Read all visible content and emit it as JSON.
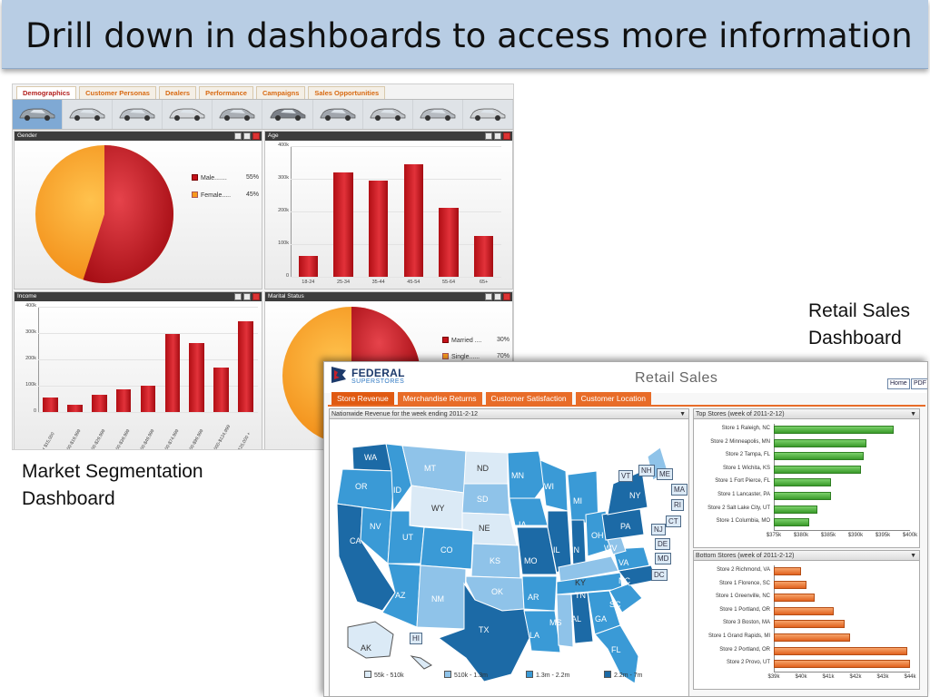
{
  "slide": {
    "title": "Drill down in dashboards to access more information",
    "caption_retail_line1": "Retail Sales",
    "caption_retail_line2": "Dashboard",
    "caption_market_line1": "Market Segmentation",
    "caption_market_line2": "Dashboard"
  },
  "market": {
    "tabs": [
      "Demographics",
      "Customer Personas",
      "Dealers",
      "Performance",
      "Campaigns",
      "Sales Opportunities"
    ],
    "active_tab": "Demographics",
    "car_icon": "car-icon",
    "car_count": 10,
    "gender": {
      "title": "Gender",
      "legend": [
        {
          "label": "Male.......",
          "pct": "55%",
          "color": "#c4111a"
        },
        {
          "label": "Female.....",
          "pct": "45%",
          "color": "#f79a1e"
        }
      ]
    },
    "age": {
      "title": "Age",
      "yticks": [
        "400k",
        "300k",
        "200k",
        "100k",
        "0"
      ],
      "categories": [
        "18-24",
        "25-34",
        "35-44",
        "45-54",
        "55-64",
        "65+"
      ],
      "values": [
        65000,
        320000,
        295000,
        345000,
        210000,
        125000
      ],
      "ymax": 400000
    },
    "income": {
      "title": "Income",
      "yticks": [
        "400k",
        "300k",
        "200k",
        "100k",
        "0"
      ],
      "categories": [
        "Under $15,000",
        "$15,000-$19,999",
        "$20,000-$29,999",
        "$30,000-$39,999",
        "$40,000-$49,999",
        "$50,000-$74,999",
        "$75,000-$99,999",
        "$100,000-$124,999",
        "$125,000 +"
      ],
      "values": [
        55000,
        28000,
        65000,
        85000,
        100000,
        298000,
        262000,
        170000,
        345000
      ],
      "ymax": 400000
    },
    "marital": {
      "title": "Marital Status",
      "legend": [
        {
          "label": "Married ....",
          "pct": "30%",
          "color": "#c4111a"
        },
        {
          "label": "Single......",
          "pct": "70%",
          "color": "#f79a1e"
        }
      ]
    }
  },
  "retail": {
    "logo_line1": "FEDERAL",
    "logo_line2": "SUPERSTORES",
    "title": "Retail Sales",
    "home_btn": "Home",
    "pdf_btn": "PDF",
    "tabs": [
      "Store Revenue",
      "Merchandise Returns",
      "Customer Satisfaction",
      "Customer Location"
    ],
    "active_tab": "Store Revenue",
    "map_title": "Nationwide Revenue for the week ending 2011-2-12",
    "map_legend": [
      {
        "label": "55k - 510k",
        "color": "#dbeaf6"
      },
      {
        "label": "510k - 1.3m",
        "color": "#8fc3e9"
      },
      {
        "label": "1.3m - 2.2m",
        "color": "#3a9ad6"
      },
      {
        "label": "2.2m - 7m",
        "color": "#1c6aa6"
      }
    ],
    "boxed_states": [
      "VT",
      "NH",
      "ME",
      "MA",
      "RI",
      "CT",
      "NJ",
      "DE",
      "MD",
      "DC",
      "HI"
    ],
    "top_stores": {
      "title": "Top Stores (week of 2011-2-12)",
      "stores": [
        "Store 1 Raleigh, NC",
        "Store 2 Minneapolis, MN",
        "Store 2 Tampa, FL",
        "Store 1 Wichita, KS",
        "Store 1 Fort Pierce, FL",
        "Store 1 Lancaster, PA",
        "Store 2 Salt Lake City, UT",
        "Store 1 Columbia, MO"
      ],
      "values": [
        397000,
        392000,
        391500,
        391000,
        385500,
        385500,
        383000,
        381500
      ],
      "xticks": [
        "$375k",
        "$380k",
        "$385k",
        "$390k",
        "$395k",
        "$400k"
      ],
      "xmin": 375000,
      "xmax": 400000
    },
    "bottom_stores": {
      "title": "Bottom Stores (week of 2011-2-12)",
      "stores": [
        "Store 2 Richmond, VA",
        "Store 1 Florence, SC",
        "Store 1 Greenville, NC",
        "Store 1 Portland, OR",
        "Store 3 Boston, MA",
        "Store 1 Grand Rapids, MI",
        "Store 2 Portland, OR",
        "Store 2 Provo, UT"
      ],
      "values": [
        40000,
        40200,
        40500,
        41200,
        41600,
        41800,
        43900,
        44000
      ],
      "xticks": [
        "$39k",
        "$40k",
        "$41k",
        "$42k",
        "$43k",
        "$44k"
      ],
      "xmin": 39000,
      "xmax": 44000
    }
  }
}
